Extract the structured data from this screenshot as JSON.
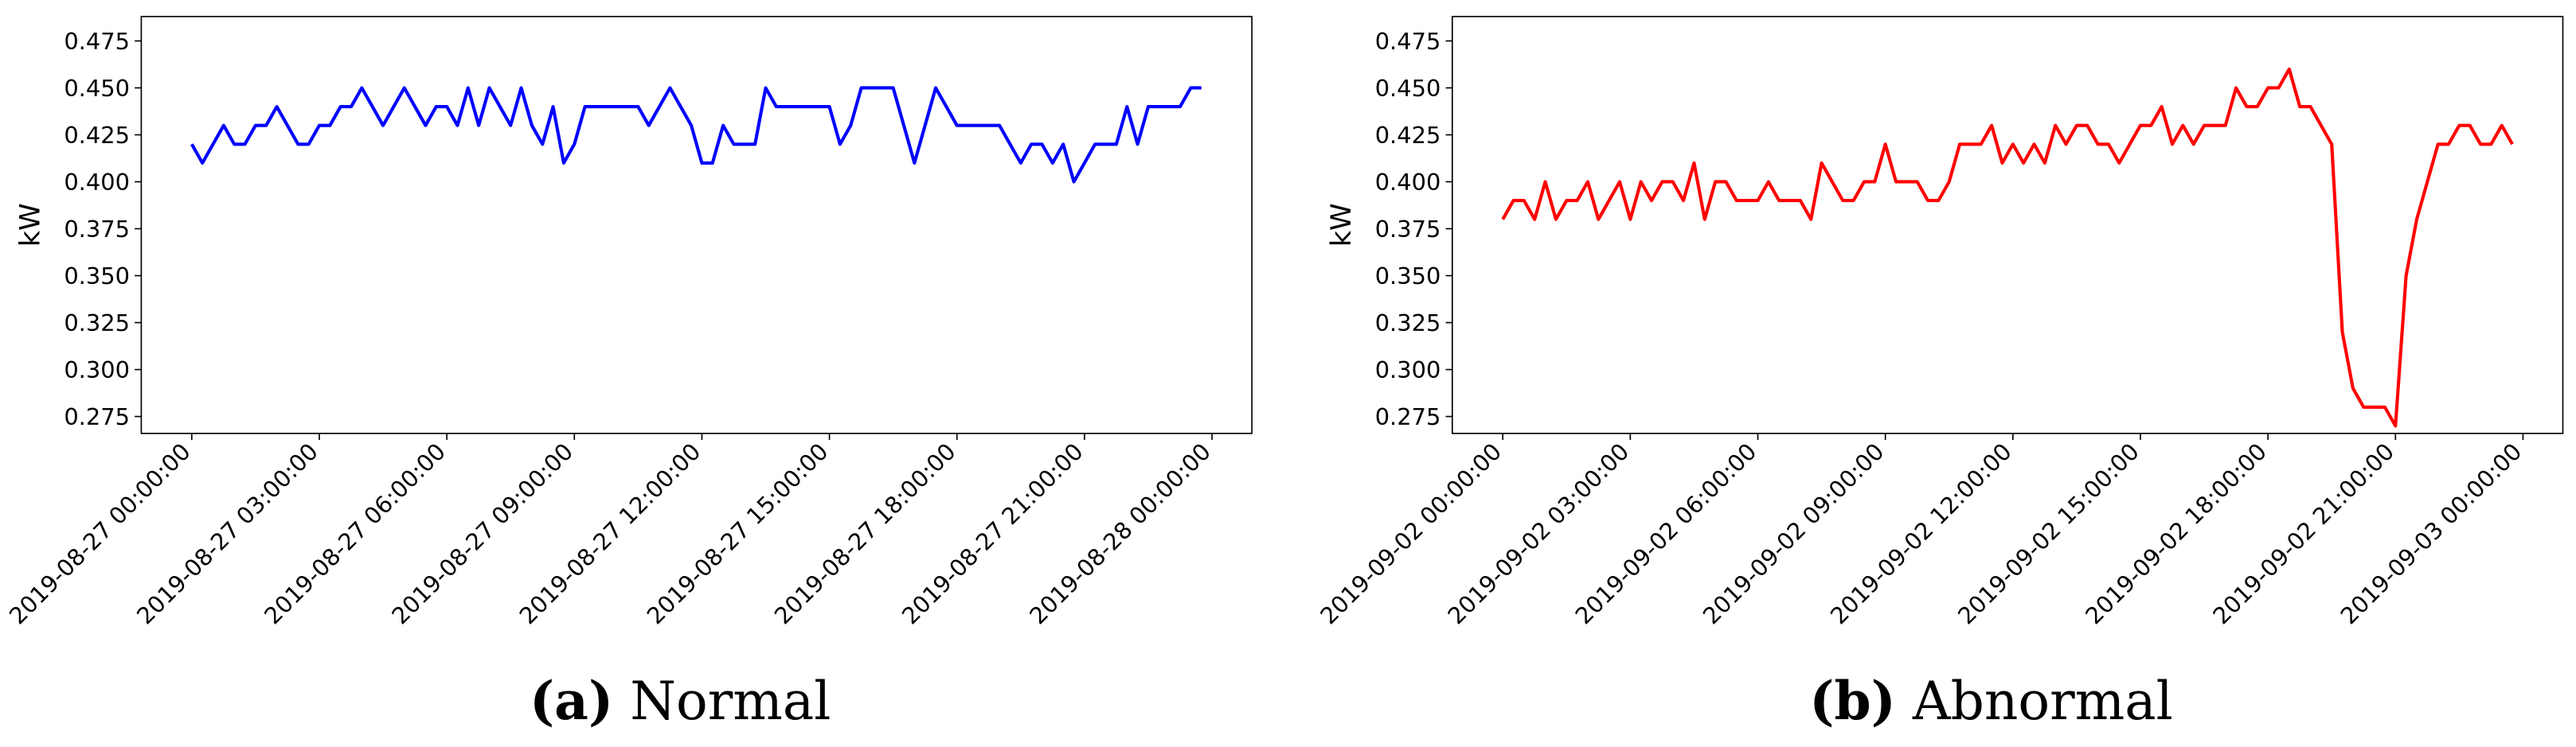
{
  "chart_data": [
    {
      "type": "line",
      "caption_label": "(a)",
      "caption": "Normal",
      "ylabel": "kW",
      "xlim": [
        "2019-08-26 22:48:45",
        "2019-08-28 00:56:15"
      ],
      "xticks": [
        "2019-08-27 00:00:00",
        "2019-08-27 03:00:00",
        "2019-08-27 06:00:00",
        "2019-08-27 09:00:00",
        "2019-08-27 12:00:00",
        "2019-08-27 15:00:00",
        "2019-08-27 18:00:00",
        "2019-08-27 21:00:00",
        "2019-08-28 00:00:00"
      ],
      "ylim": [
        0.266,
        0.488
      ],
      "yticks": [
        0.275,
        {
          "value": 0.3,
          "label": "0.300"
        },
        0.325,
        {
          "value": 0.35,
          "label": "0.350"
        },
        0.375,
        {
          "value": 0.4,
          "label": "0.400"
        },
        0.425,
        {
          "value": 0.45,
          "label": "0.450"
        },
        0.475
      ],
      "x": [
        "2019-08-27 00:00:00",
        "2019-08-27 00:15:00",
        "2019-08-27 00:30:00",
        "2019-08-27 00:45:00",
        "2019-08-27 01:00:00",
        "2019-08-27 01:15:00",
        "2019-08-27 01:30:00",
        "2019-08-27 01:45:00",
        "2019-08-27 02:00:00",
        "2019-08-27 02:15:00",
        "2019-08-27 02:30:00",
        "2019-08-27 02:45:00",
        "2019-08-27 03:00:00",
        "2019-08-27 03:15:00",
        "2019-08-27 03:30:00",
        "2019-08-27 03:45:00",
        "2019-08-27 04:00:00",
        "2019-08-27 04:15:00",
        "2019-08-27 04:30:00",
        "2019-08-27 04:45:00",
        "2019-08-27 05:00:00",
        "2019-08-27 05:15:00",
        "2019-08-27 05:30:00",
        "2019-08-27 05:45:00",
        "2019-08-27 06:00:00",
        "2019-08-27 06:15:00",
        "2019-08-27 06:30:00",
        "2019-08-27 06:45:00",
        "2019-08-27 07:00:00",
        "2019-08-27 07:15:00",
        "2019-08-27 07:30:00",
        "2019-08-27 07:45:00",
        "2019-08-27 08:00:00",
        "2019-08-27 08:15:00",
        "2019-08-27 08:30:00",
        "2019-08-27 08:45:00",
        "2019-08-27 09:00:00",
        "2019-08-27 09:15:00",
        "2019-08-27 09:30:00",
        "2019-08-27 09:45:00",
        "2019-08-27 10:00:00",
        "2019-08-27 10:15:00",
        "2019-08-27 10:30:00",
        "2019-08-27 10:45:00",
        "2019-08-27 11:00:00",
        "2019-08-27 11:15:00",
        "2019-08-27 11:30:00",
        "2019-08-27 11:45:00",
        "2019-08-27 12:00:00",
        "2019-08-27 12:15:00",
        "2019-08-27 12:30:00",
        "2019-08-27 12:45:00",
        "2019-08-27 13:00:00",
        "2019-08-27 13:15:00",
        "2019-08-27 13:30:00",
        "2019-08-27 13:45:00",
        "2019-08-27 14:00:00",
        "2019-08-27 14:15:00",
        "2019-08-27 14:30:00",
        "2019-08-27 14:45:00",
        "2019-08-27 15:00:00",
        "2019-08-27 15:15:00",
        "2019-08-27 15:30:00",
        "2019-08-27 15:45:00",
        "2019-08-27 16:00:00",
        "2019-08-27 16:15:00",
        "2019-08-27 16:30:00",
        "2019-08-27 16:45:00",
        "2019-08-27 17:00:00",
        "2019-08-27 17:15:00",
        "2019-08-27 17:30:00",
        "2019-08-27 17:45:00",
        "2019-08-27 18:00:00",
        "2019-08-27 18:15:00",
        "2019-08-27 18:30:00",
        "2019-08-27 18:45:00",
        "2019-08-27 19:00:00",
        "2019-08-27 19:15:00",
        "2019-08-27 19:30:00",
        "2019-08-27 19:45:00",
        "2019-08-27 20:00:00",
        "2019-08-27 20:15:00",
        "2019-08-27 20:30:00",
        "2019-08-27 20:45:00",
        "2019-08-27 21:00:00",
        "2019-08-27 21:15:00",
        "2019-08-27 21:30:00",
        "2019-08-27 21:45:00",
        "2019-08-27 22:00:00",
        "2019-08-27 22:15:00",
        "2019-08-27 22:30:00",
        "2019-08-27 22:45:00",
        "2019-08-27 23:00:00",
        "2019-08-27 23:15:00",
        "2019-08-27 23:30:00",
        "2019-08-27 23:45:00"
      ],
      "color": "#0000ff",
      "values": [
        0.42,
        0.41,
        0.42,
        0.43,
        0.42,
        0.42,
        0.43,
        0.43,
        0.44,
        0.43,
        0.42,
        0.42,
        0.43,
        0.43,
        0.44,
        0.44,
        0.45,
        0.44,
        0.43,
        0.44,
        0.45,
        0.44,
        0.43,
        0.44,
        0.44,
        0.43,
        0.45,
        0.43,
        0.45,
        0.44,
        0.43,
        0.45,
        0.43,
        0.42,
        0.44,
        0.41,
        0.42,
        0.44,
        0.44,
        0.44,
        0.44,
        0.44,
        0.44,
        0.43,
        0.44,
        0.45,
        0.44,
        0.43,
        0.41,
        0.41,
        0.43,
        0.42,
        0.42,
        0.42,
        0.45,
        0.44,
        0.44,
        0.44,
        0.44,
        0.44,
        0.44,
        0.42,
        0.43,
        0.45,
        0.45,
        0.45,
        0.45,
        0.43,
        0.41,
        0.43,
        0.45,
        0.44,
        0.43,
        0.43,
        0.43,
        0.43,
        0.43,
        0.42,
        0.41,
        0.42,
        0.42,
        0.41,
        0.42,
        0.4,
        0.41,
        0.42,
        0.42,
        0.42,
        0.44,
        0.42,
        0.44,
        0.44,
        0.44,
        0.44,
        0.45,
        0.45
      ]
    },
    {
      "type": "line",
      "caption_label": "(b)",
      "caption": "Abnormal",
      "ylabel": "kW",
      "xlim": [
        "2019-09-01 22:48:45",
        "2019-09-03 00:56:15"
      ],
      "xticks": [
        "2019-09-02 00:00:00",
        "2019-09-02 03:00:00",
        "2019-09-02 06:00:00",
        "2019-09-02 09:00:00",
        "2019-09-02 12:00:00",
        "2019-09-02 15:00:00",
        "2019-09-02 18:00:00",
        "2019-09-02 21:00:00",
        "2019-09-03 00:00:00"
      ],
      "ylim": [
        0.266,
        0.488
      ],
      "yticks": [
        0.275,
        {
          "value": 0.3,
          "label": "0.300"
        },
        0.325,
        {
          "value": 0.35,
          "label": "0.350"
        },
        0.375,
        {
          "value": 0.4,
          "label": "0.400"
        },
        0.425,
        {
          "value": 0.45,
          "label": "0.450"
        },
        0.475
      ],
      "x": [
        "2019-09-02 00:00:00",
        "2019-09-02 00:15:00",
        "2019-09-02 00:30:00",
        "2019-09-02 00:45:00",
        "2019-09-02 01:00:00",
        "2019-09-02 01:15:00",
        "2019-09-02 01:30:00",
        "2019-09-02 01:45:00",
        "2019-09-02 02:00:00",
        "2019-09-02 02:15:00",
        "2019-09-02 02:30:00",
        "2019-09-02 02:45:00",
        "2019-09-02 03:00:00",
        "2019-09-02 03:15:00",
        "2019-09-02 03:30:00",
        "2019-09-02 03:45:00",
        "2019-09-02 04:00:00",
        "2019-09-02 04:15:00",
        "2019-09-02 04:30:00",
        "2019-09-02 04:45:00",
        "2019-09-02 05:00:00",
        "2019-09-02 05:15:00",
        "2019-09-02 05:30:00",
        "2019-09-02 05:45:00",
        "2019-09-02 06:00:00",
        "2019-09-02 06:15:00",
        "2019-09-02 06:30:00",
        "2019-09-02 06:45:00",
        "2019-09-02 07:00:00",
        "2019-09-02 07:15:00",
        "2019-09-02 07:30:00",
        "2019-09-02 07:45:00",
        "2019-09-02 08:00:00",
        "2019-09-02 08:15:00",
        "2019-09-02 08:30:00",
        "2019-09-02 08:45:00",
        "2019-09-02 09:00:00",
        "2019-09-02 09:15:00",
        "2019-09-02 09:30:00",
        "2019-09-02 09:45:00",
        "2019-09-02 10:00:00",
        "2019-09-02 10:15:00",
        "2019-09-02 10:30:00",
        "2019-09-02 10:45:00",
        "2019-09-02 11:00:00",
        "2019-09-02 11:15:00",
        "2019-09-02 11:30:00",
        "2019-09-02 11:45:00",
        "2019-09-02 12:00:00",
        "2019-09-02 12:15:00",
        "2019-09-02 12:30:00",
        "2019-09-02 12:45:00",
        "2019-09-02 13:00:00",
        "2019-09-02 13:15:00",
        "2019-09-02 13:30:00",
        "2019-09-02 13:45:00",
        "2019-09-02 14:00:00",
        "2019-09-02 14:15:00",
        "2019-09-02 14:30:00",
        "2019-09-02 14:45:00",
        "2019-09-02 15:00:00",
        "2019-09-02 15:15:00",
        "2019-09-02 15:30:00",
        "2019-09-02 15:45:00",
        "2019-09-02 16:00:00",
        "2019-09-02 16:15:00",
        "2019-09-02 16:30:00",
        "2019-09-02 16:45:00",
        "2019-09-02 17:00:00",
        "2019-09-02 17:15:00",
        "2019-09-02 17:30:00",
        "2019-09-02 17:45:00",
        "2019-09-02 18:00:00",
        "2019-09-02 18:15:00",
        "2019-09-02 18:30:00",
        "2019-09-02 18:45:00",
        "2019-09-02 19:00:00",
        "2019-09-02 19:15:00",
        "2019-09-02 19:30:00",
        "2019-09-02 19:45:00",
        "2019-09-02 20:00:00",
        "2019-09-02 20:15:00",
        "2019-09-02 20:30:00",
        "2019-09-02 20:45:00",
        "2019-09-02 21:00:00",
        "2019-09-02 21:15:00",
        "2019-09-02 21:30:00",
        "2019-09-02 21:45:00",
        "2019-09-02 22:00:00",
        "2019-09-02 22:15:00",
        "2019-09-02 22:30:00",
        "2019-09-02 22:45:00",
        "2019-09-02 23:00:00",
        "2019-09-02 23:15:00",
        "2019-09-02 23:30:00",
        "2019-09-02 23:45:00"
      ],
      "color": "#ff0000",
      "values": [
        0.38,
        0.39,
        0.39,
        0.38,
        0.4,
        0.38,
        0.39,
        0.39,
        0.4,
        0.38,
        0.39,
        0.4,
        0.38,
        0.4,
        0.39,
        0.4,
        0.4,
        0.39,
        0.41,
        0.38,
        0.4,
        0.4,
        0.39,
        0.39,
        0.39,
        0.4,
        0.39,
        0.39,
        0.39,
        0.38,
        0.41,
        0.4,
        0.39,
        0.39,
        0.4,
        0.4,
        0.42,
        0.4,
        0.4,
        0.4,
        0.39,
        0.39,
        0.4,
        0.42,
        0.42,
        0.42,
        0.43,
        0.41,
        0.42,
        0.41,
        0.42,
        0.41,
        0.43,
        0.42,
        0.43,
        0.43,
        0.42,
        0.42,
        0.41,
        0.42,
        0.43,
        0.43,
        0.44,
        0.42,
        0.43,
        0.42,
        0.43,
        0.43,
        0.43,
        0.45,
        0.44,
        0.44,
        0.45,
        0.45,
        0.46,
        0.44,
        0.44,
        0.43,
        0.42,
        0.32,
        0.29,
        0.28,
        0.28,
        0.28,
        0.27,
        0.35,
        0.38,
        0.4,
        0.42,
        0.42,
        0.43,
        0.43,
        0.42,
        0.42,
        0.43,
        0.42
      ]
    }
  ]
}
